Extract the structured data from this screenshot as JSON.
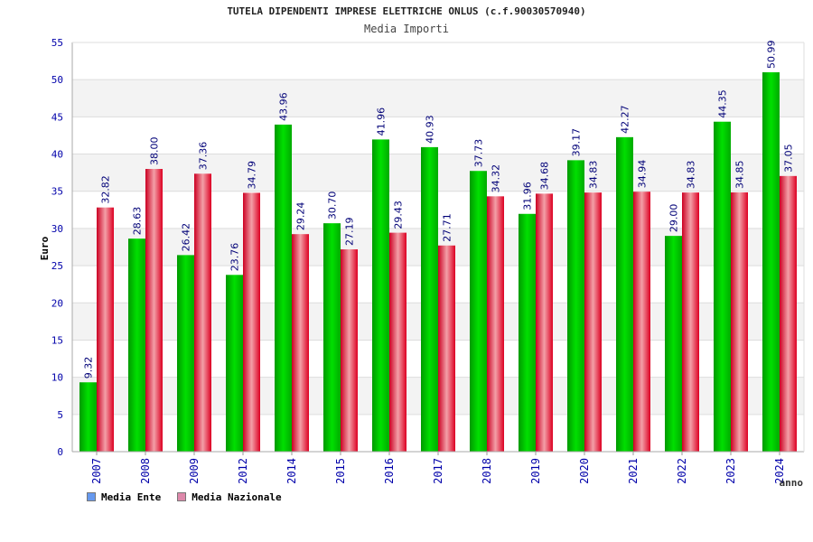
{
  "chart_data": {
    "type": "bar",
    "title": "TUTELA DIPENDENTI IMPRESE ELETTRICHE ONLUS (c.f.90030570940)",
    "subtitle": "Media Importi",
    "xlabel": "anno",
    "ylabel": "Euro",
    "ylim": [
      0,
      55
    ],
    "yticks": [
      0,
      5,
      10,
      15,
      20,
      25,
      30,
      35,
      40,
      45,
      50,
      55
    ],
    "grid": true,
    "legend_position": "bottom-left",
    "categories": [
      "2007",
      "2008",
      "2009",
      "2012",
      "2014",
      "2015",
      "2016",
      "2017",
      "2018",
      "2019",
      "2020",
      "2021",
      "2022",
      "2023",
      "2024"
    ],
    "series": [
      {
        "name": "Media Ente",
        "color": "#00cc00",
        "legend_color": "#6699ee",
        "values": [
          9.32,
          28.63,
          26.42,
          23.76,
          43.96,
          30.7,
          41.96,
          40.93,
          37.73,
          31.96,
          39.17,
          42.27,
          29.0,
          44.35,
          50.99
        ]
      },
      {
        "name": "Media Nazionale",
        "color": "#ee1133",
        "legend_color": "#dd88aa",
        "values": [
          32.82,
          38.0,
          37.36,
          34.79,
          29.24,
          27.19,
          29.43,
          27.71,
          34.32,
          34.68,
          34.83,
          34.94,
          34.83,
          34.85,
          37.05
        ]
      }
    ]
  }
}
